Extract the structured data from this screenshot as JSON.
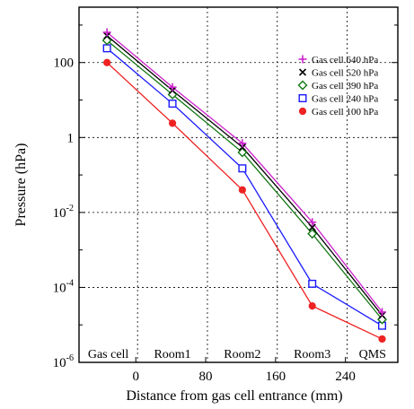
{
  "chart_data": {
    "type": "line",
    "xlabel": "Distance from gas cell entrance (mm)",
    "ylabel": "Pressure (hPa)",
    "y_scale": "log",
    "ylim": [
      1e-06,
      3000
    ],
    "xlim": [
      -65,
      300
    ],
    "x_ticks": [
      {
        "value": 0,
        "label": "0"
      },
      {
        "value": 80,
        "label": "80"
      },
      {
        "value": 160,
        "label": "160"
      },
      {
        "value": 240,
        "label": "240"
      }
    ],
    "y_ticks": [
      {
        "value": 100,
        "label": "100",
        "base": "",
        "exp": ""
      },
      {
        "value": 1,
        "label": "1",
        "base": "",
        "exp": ""
      },
      {
        "value": 0.01,
        "label": "",
        "base": "10",
        "exp": "-2"
      },
      {
        "value": 0.0001,
        "label": "",
        "base": "10",
        "exp": "-4"
      },
      {
        "value": 1e-06,
        "label": "",
        "base": "10",
        "exp": "-6"
      }
    ],
    "regions": [
      "Gas cell",
      "Room1",
      "Room2",
      "Room3",
      "QMS"
    ],
    "region_boundaries": [
      2,
      82,
      162,
      242
    ],
    "grid": "dashed",
    "legend": "upper right",
    "x": [
      -33,
      42,
      122,
      202,
      282
    ],
    "series": [
      {
        "name": "Gas cell 640 hPa",
        "marker": "plus",
        "color": "#cc22cc",
        "values": [
          640,
          22,
          0.7,
          0.0055,
          2.2e-05
        ]
      },
      {
        "name": "Gas cell 520 hPa",
        "marker": "x",
        "color": "#000000",
        "values": [
          520,
          18,
          0.55,
          0.004,
          1.8e-05
        ]
      },
      {
        "name": "Gas cell 390 hPa",
        "marker": "diamond",
        "color": "#117711",
        "values": [
          390,
          14,
          0.4,
          0.0027,
          1.4e-05
        ]
      },
      {
        "name": "Gas cell 240 hPa",
        "marker": "square",
        "color": "#1a1aff",
        "values": [
          240,
          8,
          0.15,
          0.000125,
          9.5e-06
        ]
      },
      {
        "name": "Gas cell 100 hPa",
        "marker": "circle",
        "color": "#ee2222",
        "values": [
          100,
          2.4,
          0.04,
          3.2e-05,
          4.2e-06
        ]
      }
    ]
  }
}
